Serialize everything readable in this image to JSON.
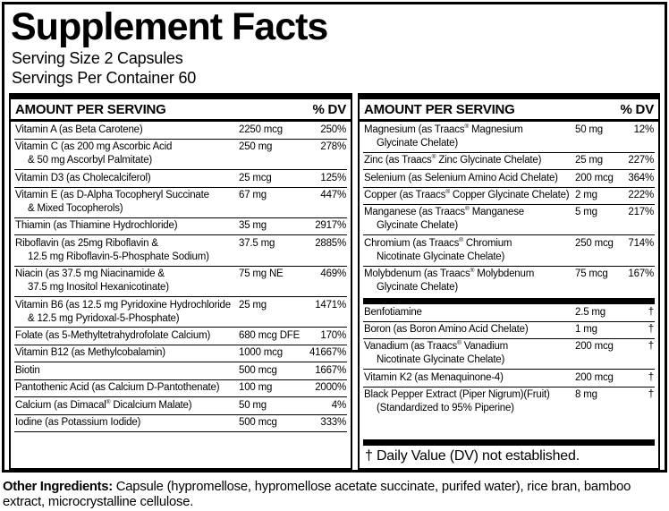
{
  "header": {
    "title": "Supplement Facts",
    "serving_size": "Serving Size 2 Capsules",
    "servings_per_container": "Servings Per Container 60"
  },
  "tables": {
    "left": {
      "amount_header": "AMOUNT PER SERVING",
      "dv_header": "% DV",
      "rows": [
        {
          "name": "Vitamin A (as Beta Carotene)",
          "amount": "2250 mcg",
          "dv": "250%"
        },
        {
          "name": "Vitamin C (as 200 mg Ascorbic Acid\n& 50 mg Ascorbyl Palmitate)",
          "amount": "250 mg",
          "dv": "278%"
        },
        {
          "name": "Vitamin D3 (as Cholecalciferol)",
          "amount": "25 mcg",
          "dv": "125%"
        },
        {
          "name": "Vitamin E (as D-Alpha Tocopheryl Succinate\n& Mixed Tocopherols)",
          "amount": "67 mg",
          "dv": "447%"
        },
        {
          "name": "Thiamin (as Thiamine Hydrochloride)",
          "amount": "35 mg",
          "dv": "2917%"
        },
        {
          "name": "Riboflavin (as 25mg Riboflavin &\n12.5 mg Riboflavin-5-Phosphate Sodium)",
          "amount": "37.5 mg",
          "dv": "2885%"
        },
        {
          "name": "Niacin (as 37.5 mg Niacinamide &\n37.5 mg Inositol Hexanicotinate)",
          "amount": "75 mg NE",
          "dv": "469%"
        },
        {
          "name": "Vitamin B6 (as 12.5 mg Pyridoxine Hydrochloride\n& 12.5 mg Pyridoxal-5-Phosphate)",
          "amount": "25 mg",
          "dv": "1471%"
        },
        {
          "name": "Folate (as 5-Methyltetrahydrofolate Calcium)",
          "amount": "680 mcg DFE",
          "dv": "170%"
        },
        {
          "name": "Vitamin B12 (as Methylcobalamin)",
          "amount": "1000 mcg",
          "dv": "41667%"
        },
        {
          "name": "Biotin",
          "amount": "500 mcg",
          "dv": "1667%"
        },
        {
          "name": "Pantothenic Acid (as Calcium D-Pantothenate)",
          "amount": "100 mg",
          "dv": "2000%"
        },
        {
          "name": "Calcium (as Dimacal® Dicalcium Malate)",
          "amount": "50 mg",
          "dv": "4%"
        },
        {
          "name": "Iodine (as Potassium Iodide)",
          "amount": "500 mcg",
          "dv": "333%"
        }
      ]
    },
    "right": {
      "amount_header": "AMOUNT PER SERVING",
      "dv_header": "% DV",
      "rows": [
        {
          "name": "Magnesium (as Traacs® Magnesium\nGlycinate Chelate)",
          "amount": "50 mg",
          "dv": "12%"
        },
        {
          "name": "Zinc (as Traacs® Zinc Glycinate Chelate)",
          "amount": "25 mg",
          "dv": "227%"
        },
        {
          "name": "Selenium (as Selenium Amino Acid Chelate)",
          "amount": "200 mcg",
          "dv": "364%"
        },
        {
          "name": "Copper (as Traacs® Copper Glycinate Chelate)",
          "amount": "2 mg",
          "dv": "222%"
        },
        {
          "name": "Manganese (as Traacs® Manganese\nGlycinate Chelate)",
          "amount": "5 mg",
          "dv": "217%"
        },
        {
          "name": "Chromium (as Traacs® Chromium\nNicotinate Glycinate Chelate)",
          "amount": "250 mcg",
          "dv": "714%"
        },
        {
          "name": "Molybdenum (as Traacs® Molybdenum\nGlycinate Chelate)",
          "amount": "75 mcg",
          "dv": "167%"
        },
        {
          "divider": true
        },
        {
          "name": "Benfotiamine",
          "amount": "2.5 mg",
          "dv": "†"
        },
        {
          "name": "Boron (as Boron Amino Acid Chelate)",
          "amount": "1 mg",
          "dv": "†"
        },
        {
          "name": "Vanadium (as Traacs® Vanadium\nNicotinate Glycinate Chelate)",
          "amount": "200 mcg",
          "dv": "†"
        },
        {
          "name": "Vitamin K2 (as Menaquinone-4)",
          "amount": "200 mcg",
          "dv": "†"
        },
        {
          "name": "Black Pepper Extract (Piper Nigrum)(Fruit)\n(Standardized to 95% Piperine)",
          "amount": "8 mg",
          "dv": "†"
        },
        {
          "divider": true,
          "end": true
        }
      ],
      "footnote": "† Daily Value (DV) not established."
    }
  },
  "other_ingredients": {
    "label": "Other Ingredients:",
    "text": " Capsule (hypromellose, hypromellose acetate succinate, purifed water), rice bran, bamboo extract, microcrystalline cellulose."
  },
  "colors": {
    "text": "#000000",
    "background": "#ffffff"
  }
}
